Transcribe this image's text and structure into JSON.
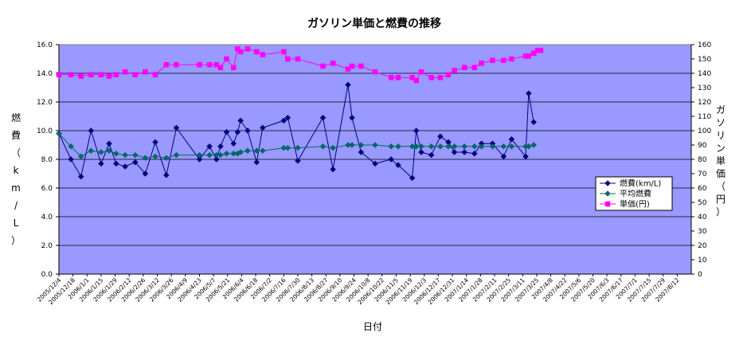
{
  "chart_data": {
    "type": "line",
    "title": "ガソリン単価と燃費の推移",
    "xlabel": "日付",
    "ylabel_left": "燃費（km/L）",
    "ylabel_right": "ガソリン単価（円）",
    "ylim_left": [
      0,
      16
    ],
    "ylim_right": [
      0,
      160
    ],
    "yticks_left": [
      "0.0",
      "2.0",
      "4.0",
      "6.0",
      "8.0",
      "10.0",
      "12.0",
      "14.0",
      "16.0"
    ],
    "yticks_right": [
      "0",
      "10",
      "20",
      "30",
      "40",
      "50",
      "60",
      "70",
      "80",
      "90",
      "100",
      "110",
      "120",
      "130",
      "140",
      "150",
      "160"
    ],
    "x_tick_labels": [
      "2005/12/4",
      "2005/12/18",
      "2006/1/1",
      "2006/1/15",
      "2006/1/29",
      "2006/2/12",
      "2006/2/26",
      "2006/3/12",
      "2006/3/26",
      "2006/4/9",
      "2006/4/23",
      "2006/5/7",
      "2006/5/21",
      "2006/6/4",
      "2006/6/18",
      "2006/7/2",
      "2006/7/16",
      "2006/7/30",
      "2006/8/13",
      "2006/8/27",
      "2006/9/10",
      "2006/9/24",
      "2006/10/8",
      "2006/10/22",
      "2006/11/5",
      "2006/11/19",
      "2006/12/3",
      "2006/12/17",
      "2006/12/31",
      "2007/1/14",
      "2007/1/28",
      "2007/2/11",
      "2007/2/25",
      "2007/3/11",
      "2007/3/25",
      "2007/4/8",
      "2007/4/22",
      "2007/5/6",
      "2007/5/20",
      "2007/6/3",
      "2007/6/17",
      "2007/7/1",
      "2007/7/15",
      "2007/7/29",
      "2007/8/12"
    ],
    "x_range": [
      "2005/12/4",
      "2007/8/26"
    ],
    "grid": "horizontal",
    "legend": "right",
    "plot_background": "#9999ff",
    "series": [
      {
        "name": "燃費(km/L)",
        "axis": "left",
        "color": "#000080",
        "marker": "diamond",
        "points": [
          [
            "2005/12/4",
            9.8
          ],
          [
            "2005/12/16",
            8.0
          ],
          [
            "2005/12/26",
            6.8
          ],
          [
            "2006/1/5",
            10.0
          ],
          [
            "2006/1/15",
            7.7
          ],
          [
            "2006/1/23",
            9.1
          ],
          [
            "2006/1/30",
            7.7
          ],
          [
            "2006/2/8",
            7.5
          ],
          [
            "2006/2/18",
            7.8
          ],
          [
            "2006/2/28",
            7.0
          ],
          [
            "2006/3/10",
            9.2
          ],
          [
            "2006/3/21",
            6.9
          ],
          [
            "2006/3/31",
            10.2
          ],
          [
            "2006/4/23",
            8.0
          ],
          [
            "2006/5/3",
            8.9
          ],
          [
            "2006/5/10",
            8.0
          ],
          [
            "2006/5/14",
            8.9
          ],
          [
            "2006/5/20",
            9.9
          ],
          [
            "2006/5/27",
            9.1
          ],
          [
            "2006/5/31",
            9.9
          ],
          [
            "2006/6/3",
            10.7
          ],
          [
            "2006/6/10",
            10.0
          ],
          [
            "2006/6/19",
            7.8
          ],
          [
            "2006/6/25",
            10.2
          ],
          [
            "2006/7/16",
            10.7
          ],
          [
            "2006/7/20",
            10.9
          ],
          [
            "2006/7/30",
            7.9
          ],
          [
            "2006/8/24",
            10.9
          ],
          [
            "2006/9/3",
            7.3
          ],
          [
            "2006/9/18",
            13.2
          ],
          [
            "2006/9/22",
            10.9
          ],
          [
            "2006/10/1",
            8.5
          ],
          [
            "2006/10/15",
            7.7
          ],
          [
            "2006/10/31",
            8.0
          ],
          [
            "2006/11/7",
            7.6
          ],
          [
            "2006/11/21",
            6.7
          ],
          [
            "2006/11/25",
            10.0
          ],
          [
            "2006/11/30",
            8.5
          ],
          [
            "2006/12/10",
            8.3
          ],
          [
            "2006/12/19",
            9.6
          ],
          [
            "2006/12/27",
            9.2
          ],
          [
            "2007/1/2",
            8.5
          ],
          [
            "2007/1/12",
            8.5
          ],
          [
            "2007/1/22",
            8.4
          ],
          [
            "2007/1/29",
            9.1
          ],
          [
            "2007/2/9",
            9.1
          ],
          [
            "2007/2/20",
            8.2
          ],
          [
            "2007/2/28",
            9.4
          ],
          [
            "2007/3/14",
            8.2
          ],
          [
            "2007/3/17",
            12.6
          ],
          [
            "2007/3/22",
            10.6
          ]
        ]
      },
      {
        "name": "平均燃費",
        "axis": "left",
        "color": "#006666",
        "marker": "diamond",
        "points": [
          [
            "2005/12/4",
            9.8
          ],
          [
            "2005/12/16",
            8.9
          ],
          [
            "2005/12/26",
            8.2
          ],
          [
            "2006/1/5",
            8.6
          ],
          [
            "2006/1/15",
            8.5
          ],
          [
            "2006/1/23",
            8.6
          ],
          [
            "2006/1/30",
            8.4
          ],
          [
            "2006/2/8",
            8.3
          ],
          [
            "2006/2/18",
            8.3
          ],
          [
            "2006/2/28",
            8.1
          ],
          [
            "2006/3/10",
            8.2
          ],
          [
            "2006/3/21",
            8.1
          ],
          [
            "2006/3/31",
            8.3
          ],
          [
            "2006/4/23",
            8.3
          ],
          [
            "2006/5/3",
            8.3
          ],
          [
            "2006/5/10",
            8.3
          ],
          [
            "2006/5/14",
            8.3
          ],
          [
            "2006/5/20",
            8.4
          ],
          [
            "2006/5/27",
            8.4
          ],
          [
            "2006/5/31",
            8.4
          ],
          [
            "2006/6/3",
            8.5
          ],
          [
            "2006/6/10",
            8.6
          ],
          [
            "2006/6/19",
            8.6
          ],
          [
            "2006/6/25",
            8.6
          ],
          [
            "2006/7/16",
            8.8
          ],
          [
            "2006/7/20",
            8.8
          ],
          [
            "2006/7/30",
            8.8
          ],
          [
            "2006/8/24",
            8.9
          ],
          [
            "2006/9/3",
            8.8
          ],
          [
            "2006/9/18",
            9.0
          ],
          [
            "2006/9/22",
            9.0
          ],
          [
            "2006/10/1",
            9.0
          ],
          [
            "2006/10/15",
            9.0
          ],
          [
            "2006/10/31",
            8.9
          ],
          [
            "2006/11/7",
            8.9
          ],
          [
            "2006/11/21",
            8.9
          ],
          [
            "2006/11/25",
            8.9
          ],
          [
            "2006/11/30",
            8.9
          ],
          [
            "2006/12/10",
            8.9
          ],
          [
            "2006/12/19",
            8.9
          ],
          [
            "2006/12/27",
            8.9
          ],
          [
            "2007/1/2",
            8.9
          ],
          [
            "2007/1/12",
            8.9
          ],
          [
            "2007/1/22",
            8.9
          ],
          [
            "2007/1/29",
            8.9
          ],
          [
            "2007/2/9",
            8.9
          ],
          [
            "2007/2/20",
            8.9
          ],
          [
            "2007/2/28",
            8.9
          ],
          [
            "2007/3/14",
            8.9
          ],
          [
            "2007/3/17",
            8.9
          ],
          [
            "2007/3/22",
            9.0
          ]
        ]
      },
      {
        "name": "単価(円)",
        "axis": "right",
        "color": "#ff00ff",
        "marker": "square",
        "points": [
          [
            "2005/12/4",
            139
          ],
          [
            "2005/12/16",
            139
          ],
          [
            "2005/12/26",
            138
          ],
          [
            "2006/1/5",
            139
          ],
          [
            "2006/1/15",
            139
          ],
          [
            "2006/1/23",
            138
          ],
          [
            "2006/1/30",
            139
          ],
          [
            "2006/2/8",
            141
          ],
          [
            "2006/2/18",
            139
          ],
          [
            "2006/2/28",
            141
          ],
          [
            "2006/3/10",
            139
          ],
          [
            "2006/3/21",
            146
          ],
          [
            "2006/3/31",
            146
          ],
          [
            "2006/4/23",
            146
          ],
          [
            "2006/5/3",
            146
          ],
          [
            "2006/5/10",
            146
          ],
          [
            "2006/5/14",
            144
          ],
          [
            "2006/5/20",
            150
          ],
          [
            "2006/5/27",
            144
          ],
          [
            "2006/5/31",
            157
          ],
          [
            "2006/6/3",
            155
          ],
          [
            "2006/6/10",
            157
          ],
          [
            "2006/6/19",
            155
          ],
          [
            "2006/6/25",
            153
          ],
          [
            "2006/7/16",
            155
          ],
          [
            "2006/7/20",
            150
          ],
          [
            "2006/7/30",
            150
          ],
          [
            "2006/8/24",
            145
          ],
          [
            "2006/9/3",
            147
          ],
          [
            "2006/9/18",
            143
          ],
          [
            "2006/9/22",
            145
          ],
          [
            "2006/10/1",
            145
          ],
          [
            "2006/10/15",
            141
          ],
          [
            "2006/10/31",
            137
          ],
          [
            "2006/11/7",
            137
          ],
          [
            "2006/11/21",
            137
          ],
          [
            "2006/11/25",
            135
          ],
          [
            "2006/11/30",
            141
          ],
          [
            "2006/12/10",
            137
          ],
          [
            "2006/12/19",
            137
          ],
          [
            "2006/12/27",
            139
          ],
          [
            "2007/1/2",
            142
          ],
          [
            "2007/1/12",
            144
          ],
          [
            "2007/1/22",
            144
          ],
          [
            "2007/1/29",
            147
          ],
          [
            "2007/2/9",
            149
          ],
          [
            "2007/2/20",
            149
          ],
          [
            "2007/2/28",
            150
          ],
          [
            "2007/3/14",
            152
          ],
          [
            "2007/3/17",
            152
          ],
          [
            "2007/3/22",
            154
          ],
          [
            "2007/3/26",
            156
          ],
          [
            "2007/3/29",
            156
          ]
        ]
      }
    ]
  }
}
